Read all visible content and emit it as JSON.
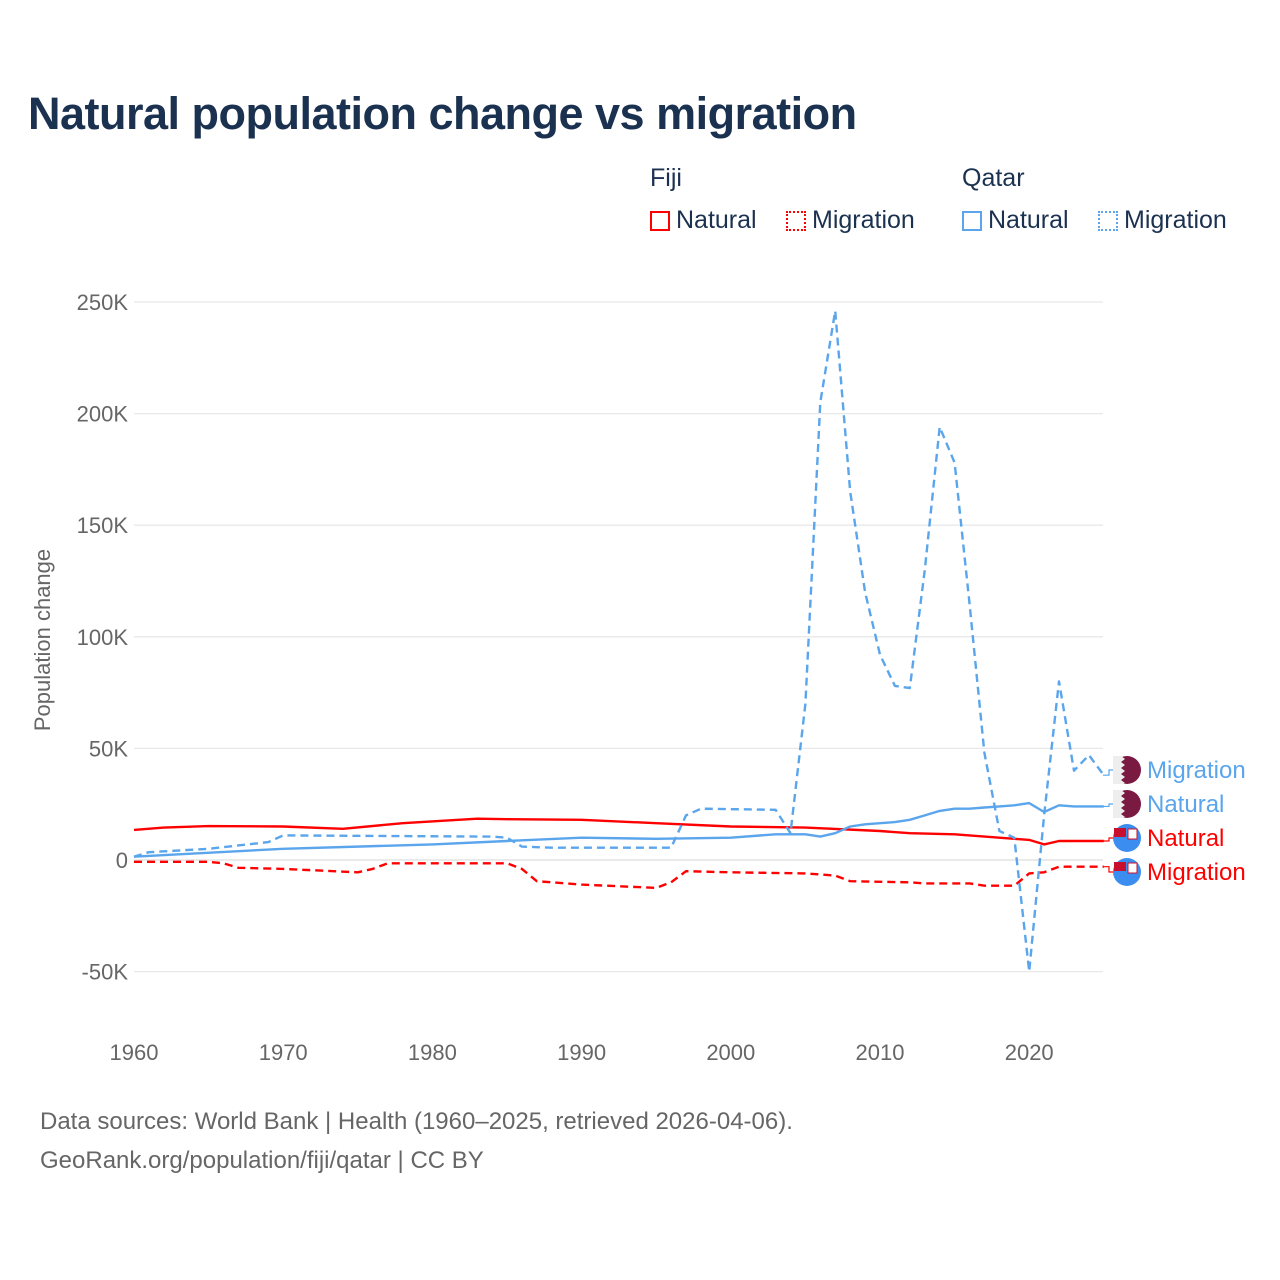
{
  "chart_data": {
    "type": "line",
    "title": "Natural population change vs migration",
    "ylabel": "Population change",
    "xlabel": "",
    "xlim": [
      1960,
      2025
    ],
    "ylim": [
      -75000,
      260000
    ],
    "grid": true,
    "x_ticks": [
      1960,
      1970,
      1980,
      1990,
      2000,
      2010,
      2020
    ],
    "x_tick_labels": [
      "1960",
      "1970",
      "1980",
      "1990",
      "2000",
      "2010",
      "2020"
    ],
    "y_ticks": [
      -50000,
      0,
      50000,
      100000,
      150000,
      200000,
      250000
    ],
    "y_tick_labels": [
      "-50K",
      "0",
      "50K",
      "100K",
      "150K",
      "200K",
      "250K"
    ],
    "legend": {
      "placement": "top-right",
      "groups": [
        {
          "name": "Fiji",
          "items": [
            "Natural",
            "Migration"
          ]
        },
        {
          "name": "Qatar",
          "items": [
            "Natural",
            "Migration"
          ]
        }
      ]
    },
    "series": [
      {
        "name": "Qatar Migration",
        "country": "Qatar",
        "label": "Migration",
        "color": "#5aa5ec",
        "dashed": true,
        "points": [
          [
            1960,
            1500
          ],
          [
            1961,
            3500
          ],
          [
            1965,
            5000
          ],
          [
            1969,
            8000
          ],
          [
            1970,
            11000
          ],
          [
            1984,
            10500
          ],
          [
            1985,
            10000
          ],
          [
            1986,
            6000
          ],
          [
            1988,
            5500
          ],
          [
            1996,
            5500
          ],
          [
            1997,
            20000
          ],
          [
            1998,
            23000
          ],
          [
            2003,
            22500
          ],
          [
            2004,
            12000
          ],
          [
            2005,
            70000
          ],
          [
            2006,
            205000
          ],
          [
            2007,
            246000
          ],
          [
            2008,
            165000
          ],
          [
            2009,
            120000
          ],
          [
            2010,
            92000
          ],
          [
            2011,
            78000
          ],
          [
            2012,
            77000
          ],
          [
            2013,
            130000
          ],
          [
            2014,
            194000
          ],
          [
            2015,
            178000
          ],
          [
            2016,
            115000
          ],
          [
            2017,
            48000
          ],
          [
            2018,
            13000
          ],
          [
            2019,
            10000
          ],
          [
            2020,
            -50000
          ],
          [
            2021,
            20000
          ],
          [
            2022,
            80000
          ],
          [
            2023,
            40000
          ],
          [
            2024,
            47000
          ],
          [
            2025,
            38000
          ]
        ]
      },
      {
        "name": "Qatar Natural",
        "country": "Qatar",
        "label": "Natural",
        "color": "#5aa5ec",
        "dashed": false,
        "points": [
          [
            1960,
            1500
          ],
          [
            1970,
            5000
          ],
          [
            1980,
            7000
          ],
          [
            1985,
            8500
          ],
          [
            1990,
            10000
          ],
          [
            1995,
            9500
          ],
          [
            2000,
            10000
          ],
          [
            2003,
            11500
          ],
          [
            2005,
            11500
          ],
          [
            2006,
            10500
          ],
          [
            2007,
            12000
          ],
          [
            2008,
            15000
          ],
          [
            2009,
            16000
          ],
          [
            2011,
            17000
          ],
          [
            2012,
            18000
          ],
          [
            2013,
            20000
          ],
          [
            2014,
            22000
          ],
          [
            2015,
            23000
          ],
          [
            2016,
            23000
          ],
          [
            2017,
            23500
          ],
          [
            2018,
            24000
          ],
          [
            2019,
            24500
          ],
          [
            2020,
            25500
          ],
          [
            2021,
            21500
          ],
          [
            2022,
            24500
          ],
          [
            2023,
            24000
          ],
          [
            2025,
            24000
          ]
        ]
      },
      {
        "name": "Fiji Natural",
        "country": "Fiji",
        "label": "Natural",
        "color": "#ff0000",
        "dashed": false,
        "points": [
          [
            1960,
            13500
          ],
          [
            1962,
            14500
          ],
          [
            1965,
            15200
          ],
          [
            1970,
            15000
          ],
          [
            1974,
            14000
          ],
          [
            1978,
            16500
          ],
          [
            1983,
            18500
          ],
          [
            1985,
            18300
          ],
          [
            1990,
            18000
          ],
          [
            1995,
            16500
          ],
          [
            2000,
            15000
          ],
          [
            2005,
            14500
          ],
          [
            2010,
            13000
          ],
          [
            2012,
            12000
          ],
          [
            2015,
            11500
          ],
          [
            2019,
            9500
          ],
          [
            2020,
            9000
          ],
          [
            2021,
            7000
          ],
          [
            2022,
            8500
          ],
          [
            2023,
            8500
          ],
          [
            2025,
            8500
          ]
        ]
      },
      {
        "name": "Fiji Migration",
        "country": "Fiji",
        "label": "Migration",
        "color": "#ff0000",
        "dashed": true,
        "points": [
          [
            1960,
            -800
          ],
          [
            1965,
            -800
          ],
          [
            1966,
            -1500
          ],
          [
            1967,
            -3500
          ],
          [
            1970,
            -4000
          ],
          [
            1975,
            -5500
          ],
          [
            1976,
            -4000
          ],
          [
            1977,
            -1500
          ],
          [
            1985,
            -1500
          ],
          [
            1986,
            -4000
          ],
          [
            1987,
            -9500
          ],
          [
            1990,
            -11000
          ],
          [
            1995,
            -12500
          ],
          [
            1996,
            -10000
          ],
          [
            1997,
            -5000
          ],
          [
            2000,
            -5500
          ],
          [
            2005,
            -6000
          ],
          [
            2007,
            -7000
          ],
          [
            2008,
            -9500
          ],
          [
            2012,
            -10000
          ],
          [
            2013,
            -10500
          ],
          [
            2016,
            -10500
          ],
          [
            2017,
            -11500
          ],
          [
            2019,
            -11500
          ],
          [
            2020,
            -6000
          ],
          [
            2021,
            -5500
          ],
          [
            2022,
            -3000
          ],
          [
            2024,
            -3000
          ],
          [
            2025,
            -3000
          ]
        ]
      }
    ],
    "end_labels": [
      {
        "text": "Migration",
        "country": "Qatar",
        "color": "#5aa5ec"
      },
      {
        "text": "Natural",
        "country": "Qatar",
        "color": "#5aa5ec"
      },
      {
        "text": "Natural",
        "country": "Fiji",
        "color": "#ff0000"
      },
      {
        "text": "Migration",
        "country": "Fiji",
        "color": "#ff0000"
      }
    ]
  },
  "footer": {
    "line1": "Data sources: World Bank | Health (1960–2025, retrieved 2026-04-06).",
    "line2": "GeoRank.org/population/fiji/qatar | CC BY"
  },
  "colors": {
    "title": "#1b3150",
    "fiji": "#ff0000",
    "qatar": "#5aa5ec",
    "qatar_flag": "#7a1a42",
    "fiji_flag": "#3b8ef0"
  }
}
